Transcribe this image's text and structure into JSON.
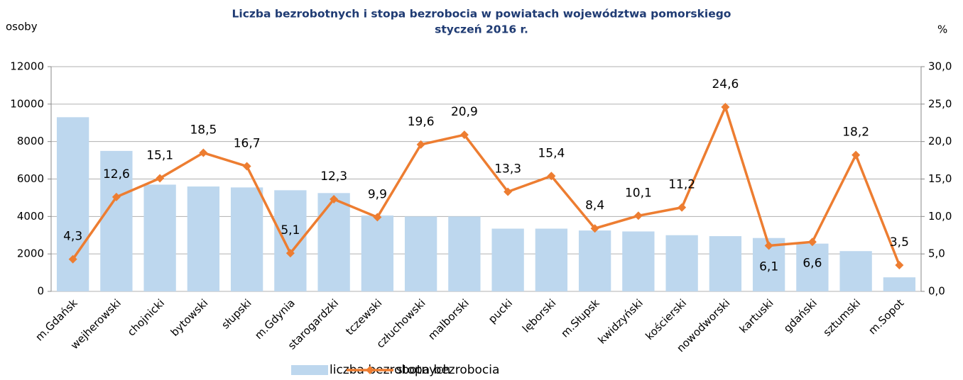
{
  "chart_data": {
    "type": "combo",
    "title": "Liczba bezrobotnych i stopa bezrobocia w powiatach województwa  pomorskiego",
    "subtitle": "styczeń 2016 r.",
    "y_label": "osoby",
    "y2_label": "%",
    "categories": [
      "m.Gdańsk",
      "wejherowski",
      "chojnicki",
      "bytowski",
      "słupski",
      "m.Gdynia",
      "starogardzki",
      "tczewski",
      "człuchowski",
      "malborski",
      "pucki",
      "lęborski",
      "m.Słupsk",
      "kwidzyński",
      "kościerski",
      "nowodworski",
      "kartuski",
      "gdański",
      "sztumski",
      "m.Sopot"
    ],
    "series": [
      {
        "name": "liczba bezrobotnych",
        "type": "bar",
        "color": "#bdd7ee",
        "values": [
          9300,
          7500,
          5700,
          5600,
          5550,
          5400,
          5250,
          4050,
          4000,
          4000,
          3350,
          3350,
          3250,
          3200,
          3000,
          2950,
          2850,
          2550,
          2150,
          750
        ]
      },
      {
        "name": "stopa bezrobocia",
        "type": "line",
        "axis": "y2",
        "color": "#ed7d31",
        "values": [
          4.3,
          12.6,
          15.1,
          18.5,
          16.7,
          5.1,
          12.3,
          9.9,
          19.6,
          20.9,
          13.3,
          15.4,
          8.4,
          10.1,
          11.2,
          24.6,
          6.1,
          6.6,
          18.2,
          3.5
        ],
        "value_labels": [
          "4,3",
          "12,6",
          "15,1",
          "18,5",
          "16,7",
          "5,1",
          "12,3",
          "9,9",
          "19,6",
          "20,9",
          "13,3",
          "15,4",
          "8,4",
          "10,1",
          "11,2",
          "24,6",
          "6,1",
          "6,6",
          "18,2",
          "3,5"
        ]
      }
    ],
    "ylim": [
      0,
      12000
    ],
    "yticks": [
      0,
      2000,
      4000,
      6000,
      8000,
      10000,
      12000
    ],
    "y2lim": [
      0,
      30
    ],
    "y2ticks": [
      {
        "value": 0,
        "label": "0,0"
      },
      {
        "value": 5,
        "label": "5,0"
      },
      {
        "value": 10,
        "label": "10,0"
      },
      {
        "value": 15,
        "label": "15,0"
      },
      {
        "value": 20,
        "label": "20,0"
      },
      {
        "value": 25,
        "label": "25,0"
      },
      {
        "value": 30,
        "label": "30,0"
      }
    ],
    "grid": true
  }
}
